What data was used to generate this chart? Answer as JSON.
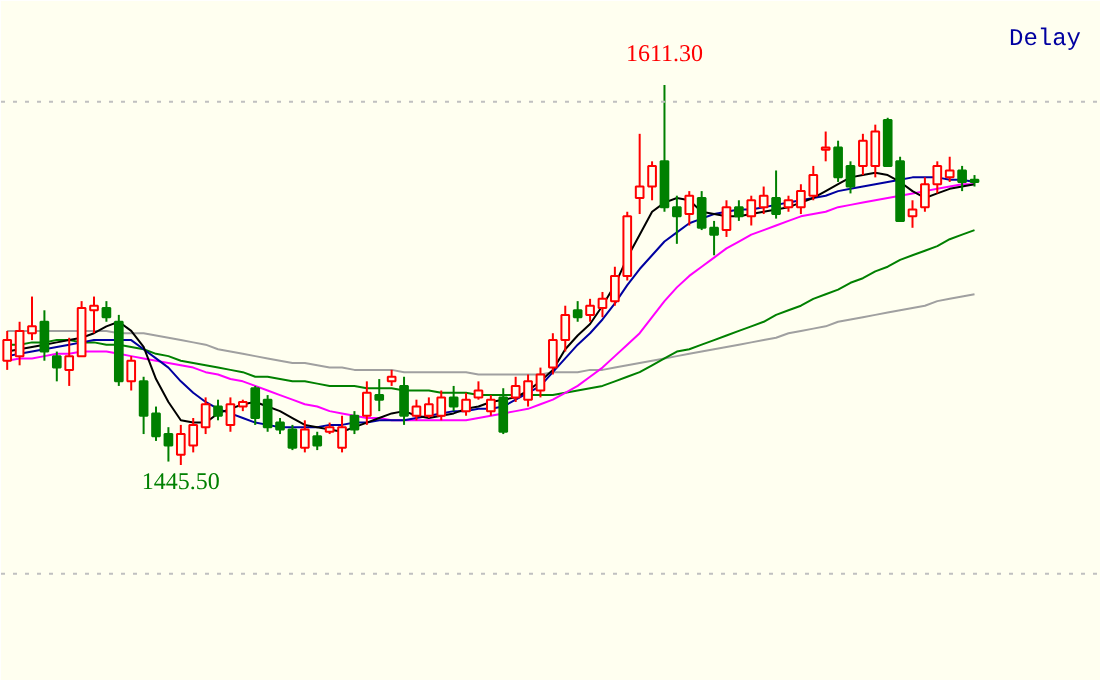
{
  "chart_data": {
    "type": "candlestick",
    "categories": [
      null,
      null,
      null,
      null,
      null,
      null,
      null,
      null,
      null,
      null,
      null,
      null,
      null,
      null,
      null,
      null,
      null,
      null,
      null,
      null,
      null,
      null,
      null,
      null,
      null,
      null,
      null,
      null,
      null,
      null,
      null,
      null,
      null,
      null,
      null,
      null,
      null,
      null,
      null,
      null,
      null,
      null,
      null,
      null,
      null,
      null,
      null,
      null,
      null,
      null,
      null,
      null,
      null,
      null,
      null,
      null,
      null,
      null,
      null,
      null,
      null,
      null,
      null,
      null,
      null,
      null,
      null,
      null,
      null,
      null,
      null,
      null,
      null,
      null,
      null,
      null,
      null,
      null,
      null
    ],
    "ohlc": [
      [
        1491,
        1504,
        1487,
        1500
      ],
      [
        1493,
        1508,
        1489,
        1504
      ],
      [
        1503,
        1519,
        1500,
        1506
      ],
      [
        1508,
        1513,
        1491,
        1495
      ],
      [
        1493,
        1495,
        1482,
        1488
      ],
      [
        1487,
        1501,
        1480,
        1493
      ],
      [
        1493,
        1517,
        1493,
        1514
      ],
      [
        1513,
        1519,
        1503,
        1515
      ],
      [
        1514,
        1517,
        1508,
        1510
      ],
      [
        1508,
        1511,
        1480,
        1482
      ],
      [
        1482,
        1493,
        1478,
        1491
      ],
      [
        1482,
        1484,
        1459,
        1467
      ],
      [
        1468,
        1471,
        1456,
        1458
      ],
      [
        1459,
        1462,
        1447,
        1454
      ],
      [
        1450,
        1463,
        1445.5,
        1459
      ],
      [
        1454,
        1466,
        1451,
        1463
      ],
      [
        1462,
        1475,
        1459,
        1472
      ],
      [
        1471,
        1474,
        1465,
        1467
      ],
      [
        1463,
        1475,
        1460,
        1472
      ],
      [
        1471,
        1474,
        1469,
        1473
      ],
      [
        1479,
        1480,
        1463,
        1466
      ],
      [
        1474,
        1476,
        1460,
        1462
      ],
      [
        1464,
        1466,
        1459,
        1461
      ],
      [
        1461,
        1463,
        1452,
        1453
      ],
      [
        1453,
        1465,
        1451,
        1461
      ],
      [
        1458,
        1460,
        1452,
        1454
      ],
      [
        1460,
        1464,
        1459,
        1462
      ],
      [
        1453,
        1467,
        1451,
        1462
      ],
      [
        1467,
        1469,
        1459,
        1461
      ],
      [
        1467,
        1482,
        1463,
        1477
      ],
      [
        1476,
        1483,
        1469,
        1474
      ],
      [
        1482,
        1487,
        1480,
        1484
      ],
      [
        1480,
        1484,
        1463,
        1467
      ],
      [
        1467,
        1474,
        1465,
        1471
      ],
      [
        1467,
        1475,
        1466,
        1472
      ],
      [
        1467,
        1478,
        1465,
        1475
      ],
      [
        1475,
        1480,
        1469,
        1471
      ],
      [
        1469,
        1477,
        1467,
        1474
      ],
      [
        1475,
        1482,
        1474,
        1478
      ],
      [
        1469,
        1476,
        1467,
        1474
      ],
      [
        1475,
        1479,
        1459,
        1460
      ],
      [
        1475,
        1484,
        1473,
        1480
      ],
      [
        1474,
        1485,
        1471,
        1482
      ],
      [
        1478,
        1488,
        1475,
        1485
      ],
      [
        1488,
        1503,
        1485,
        1500
      ],
      [
        1500,
        1515,
        1495,
        1511
      ],
      [
        1513,
        1517,
        1508,
        1510
      ],
      [
        1511,
        1518,
        1508,
        1515
      ],
      [
        1514,
        1521,
        1510,
        1518
      ],
      [
        1517,
        1532,
        1515,
        1528
      ],
      [
        1528,
        1556,
        1526,
        1554
      ],
      [
        1562,
        1590,
        1555,
        1567
      ],
      [
        1567,
        1578,
        1561,
        1576
      ],
      [
        1578,
        1611.3,
        1556,
        1558
      ],
      [
        1558,
        1563,
        1542,
        1554
      ],
      [
        1555,
        1565,
        1550,
        1563
      ],
      [
        1562,
        1565,
        1548,
        1549
      ],
      [
        1549,
        1552,
        1537,
        1546
      ],
      [
        1548,
        1561,
        1545,
        1558
      ],
      [
        1558,
        1561,
        1552,
        1554
      ],
      [
        1554,
        1563,
        1550,
        1561
      ],
      [
        1558,
        1567,
        1555,
        1563
      ],
      [
        1562,
        1574,
        1553,
        1555
      ],
      [
        1558,
        1563,
        1556,
        1561
      ],
      [
        1558,
        1568,
        1555,
        1565
      ],
      [
        1563,
        1576,
        1561,
        1572
      ],
      [
        1583,
        1591,
        1578,
        1584
      ],
      [
        1584,
        1587,
        1569,
        1571
      ],
      [
        1576,
        1578,
        1564,
        1567
      ],
      [
        1576,
        1590,
        1572,
        1587
      ],
      [
        1576,
        1594,
        1571,
        1591
      ],
      [
        1596,
        1597,
        1576,
        1576
      ],
      [
        1578,
        1580,
        1552,
        1552
      ],
      [
        1554,
        1561,
        1549,
        1557
      ],
      [
        1558,
        1571,
        1556,
        1568
      ],
      [
        1568,
        1578,
        1564,
        1576
      ],
      [
        1571,
        1580,
        1569,
        1574
      ],
      [
        1574,
        1576,
        1565,
        1569
      ],
      [
        1570,
        1572,
        1567,
        1569
      ]
    ],
    "colors": [
      "#ff0000",
      "#ff0000",
      "#ff0000",
      "#008000",
      "#008000",
      "#ff0000",
      "#ff0000",
      "#ff0000",
      "#008000",
      "#008000",
      "#ff0000",
      "#008000",
      "#008000",
      "#008000",
      "#ff0000",
      "#ff0000",
      "#ff0000",
      "#008000",
      "#ff0000",
      "#ff0000",
      "#008000",
      "#008000",
      "#008000",
      "#008000",
      "#ff0000",
      "#008000",
      "#ff0000",
      "#ff0000",
      "#008000",
      "#ff0000",
      "#008000",
      "#ff0000",
      "#008000",
      "#ff0000",
      "#ff0000",
      "#ff0000",
      "#008000",
      "#ff0000",
      "#ff0000",
      "#ff0000",
      "#008000",
      "#ff0000",
      "#ff0000",
      "#ff0000",
      "#ff0000",
      "#ff0000",
      "#008000",
      "#ff0000",
      "#ff0000",
      "#ff0000",
      "#ff0000",
      "#ff0000",
      "#ff0000",
      "#008000",
      "#008000",
      "#ff0000",
      "#008000",
      "#008000",
      "#ff0000",
      "#008000",
      "#ff0000",
      "#ff0000",
      "#008000",
      "#ff0000",
      "#ff0000",
      "#ff0000",
      "#ff0000",
      "#008000",
      "#008000",
      "#ff0000",
      "#ff0000",
      "#008000",
      "#008000",
      "#ff0000",
      "#ff0000",
      "#ff0000",
      "#ff0000",
      "#008000",
      "#008000"
    ],
    "series": [
      {
        "type": "line",
        "color": "#a0a0a0",
        "values": [
          1504,
          1504,
          1504,
          1504,
          1504,
          1504,
          1504,
          1504,
          1504,
          1503,
          1503,
          1503,
          1502,
          1501,
          1500,
          1499,
          1498,
          1496,
          1495,
          1494,
          1493,
          1492,
          1491,
          1490,
          1490,
          1489,
          1488,
          1488,
          1487,
          1487,
          1487,
          1487,
          1486,
          1486,
          1486,
          1486,
          1486,
          1486,
          1485,
          1485,
          1485,
          1485,
          1485,
          1485,
          1486,
          1486,
          1486,
          1487,
          1487,
          1488,
          1489,
          1490,
          1491,
          1492,
          1493,
          1494,
          1495,
          1496,
          1497,
          1498,
          1499,
          1500,
          1501,
          1503,
          1504,
          1505,
          1506,
          1508,
          1509,
          1510,
          1511,
          1512,
          1513,
          1514,
          1515,
          1517,
          1518,
          1519,
          1520
        ]
      },
      {
        "type": "line",
        "color": "#008000",
        "values": [
          1498,
          1498,
          1499,
          1499,
          1500,
          1500,
          1499,
          1499,
          1498,
          1498,
          1497,
          1496,
          1494,
          1493,
          1491,
          1490,
          1489,
          1488,
          1487,
          1486,
          1484,
          1484,
          1483,
          1482,
          1482,
          1481,
          1480,
          1480,
          1480,
          1479,
          1479,
          1479,
          1478,
          1478,
          1478,
          1477,
          1477,
          1477,
          1476,
          1476,
          1476,
          1476,
          1476,
          1476,
          1476,
          1477,
          1478,
          1479,
          1480,
          1482,
          1484,
          1486,
          1489,
          1492,
          1495,
          1496,
          1498,
          1500,
          1502,
          1504,
          1506,
          1508,
          1511,
          1513,
          1515,
          1518,
          1520,
          1522,
          1525,
          1527,
          1530,
          1532,
          1535,
          1537,
          1539,
          1541,
          1544,
          1546,
          1548
        ]
      },
      {
        "type": "line",
        "color": "#ff00ff",
        "values": [
          1491,
          1492,
          1492,
          1493,
          1494,
          1494,
          1495,
          1495,
          1495,
          1494,
          1493,
          1492,
          1491,
          1490,
          1489,
          1488,
          1486,
          1485,
          1483,
          1482,
          1480,
          1478,
          1476,
          1474,
          1472,
          1471,
          1469,
          1468,
          1467,
          1466,
          1466,
          1465,
          1465,
          1465,
          1465,
          1465,
          1465,
          1465,
          1466,
          1467,
          1468,
          1469,
          1470,
          1472,
          1474,
          1477,
          1480,
          1484,
          1488,
          1493,
          1498,
          1503,
          1510,
          1517,
          1523,
          1528,
          1532,
          1536,
          1540,
          1543,
          1546,
          1548,
          1550,
          1552,
          1554,
          1555,
          1556,
          1558,
          1559,
          1560,
          1561,
          1562,
          1563,
          1564,
          1565,
          1566,
          1567,
          1568,
          1568
        ]
      },
      {
        "type": "line",
        "color": "#0000a0",
        "values": [
          1493,
          1494,
          1495,
          1496,
          1497,
          1498,
          1499,
          1500,
          1500,
          1500,
          1500,
          1496,
          1492,
          1488,
          1482,
          1477,
          1473,
          1470,
          1468,
          1466,
          1464,
          1463,
          1462,
          1462,
          1462,
          1462,
          1463,
          1463,
          1464,
          1464,
          1465,
          1465,
          1465,
          1466,
          1467,
          1468,
          1469,
          1469,
          1470,
          1470,
          1471,
          1474,
          1477,
          1480,
          1486,
          1492,
          1498,
          1503,
          1509,
          1516,
          1524,
          1531,
          1537,
          1543,
          1547,
          1551,
          1553,
          1555,
          1556,
          1557,
          1557,
          1558,
          1559,
          1560,
          1561,
          1562,
          1563,
          1565,
          1566,
          1567,
          1568,
          1569,
          1570,
          1571,
          1571,
          1571,
          1570,
          1570,
          1569
        ]
      },
      {
        "type": "line",
        "color": "#000000",
        "values": [
          1495,
          1496,
          1497,
          1498,
          1499,
          1500,
          1501,
          1503,
          1506,
          1508,
          1504,
          1497,
          1483,
          1473,
          1465,
          1464,
          1464,
          1468,
          1470,
          1472,
          1473,
          1471,
          1469,
          1466,
          1463,
          1462,
          1461,
          1460,
          1462,
          1464,
          1466,
          1468,
          1469,
          1467,
          1466,
          1467,
          1468,
          1470,
          1471,
          1473,
          1474,
          1475,
          1478,
          1482,
          1487,
          1496,
          1502,
          1507,
          1515,
          1524,
          1536,
          1546,
          1556,
          1560,
          1562,
          1561,
          1556,
          1555,
          1554,
          1554,
          1555,
          1556,
          1557,
          1558,
          1560,
          1562,
          1565,
          1568,
          1571,
          1572,
          1573,
          1572,
          1569,
          1565,
          1562,
          1564,
          1566,
          1567,
          1568
        ]
      }
    ],
    "ref_lines": [
      {
        "axis": "y",
        "value": 1604,
        "color": "#c0c0c0",
        "line_style": "dotted"
      },
      {
        "axis": "y",
        "value": 1398,
        "color": "#c0c0c0",
        "line_style": "dotted"
      }
    ],
    "annotations": [
      {
        "text": "1611.30",
        "y": 1611.3
      },
      {
        "text": "1445.50",
        "y": 1445.5
      },
      "Delay"
    ],
    "tick_labels": false,
    "grid": false
  }
}
